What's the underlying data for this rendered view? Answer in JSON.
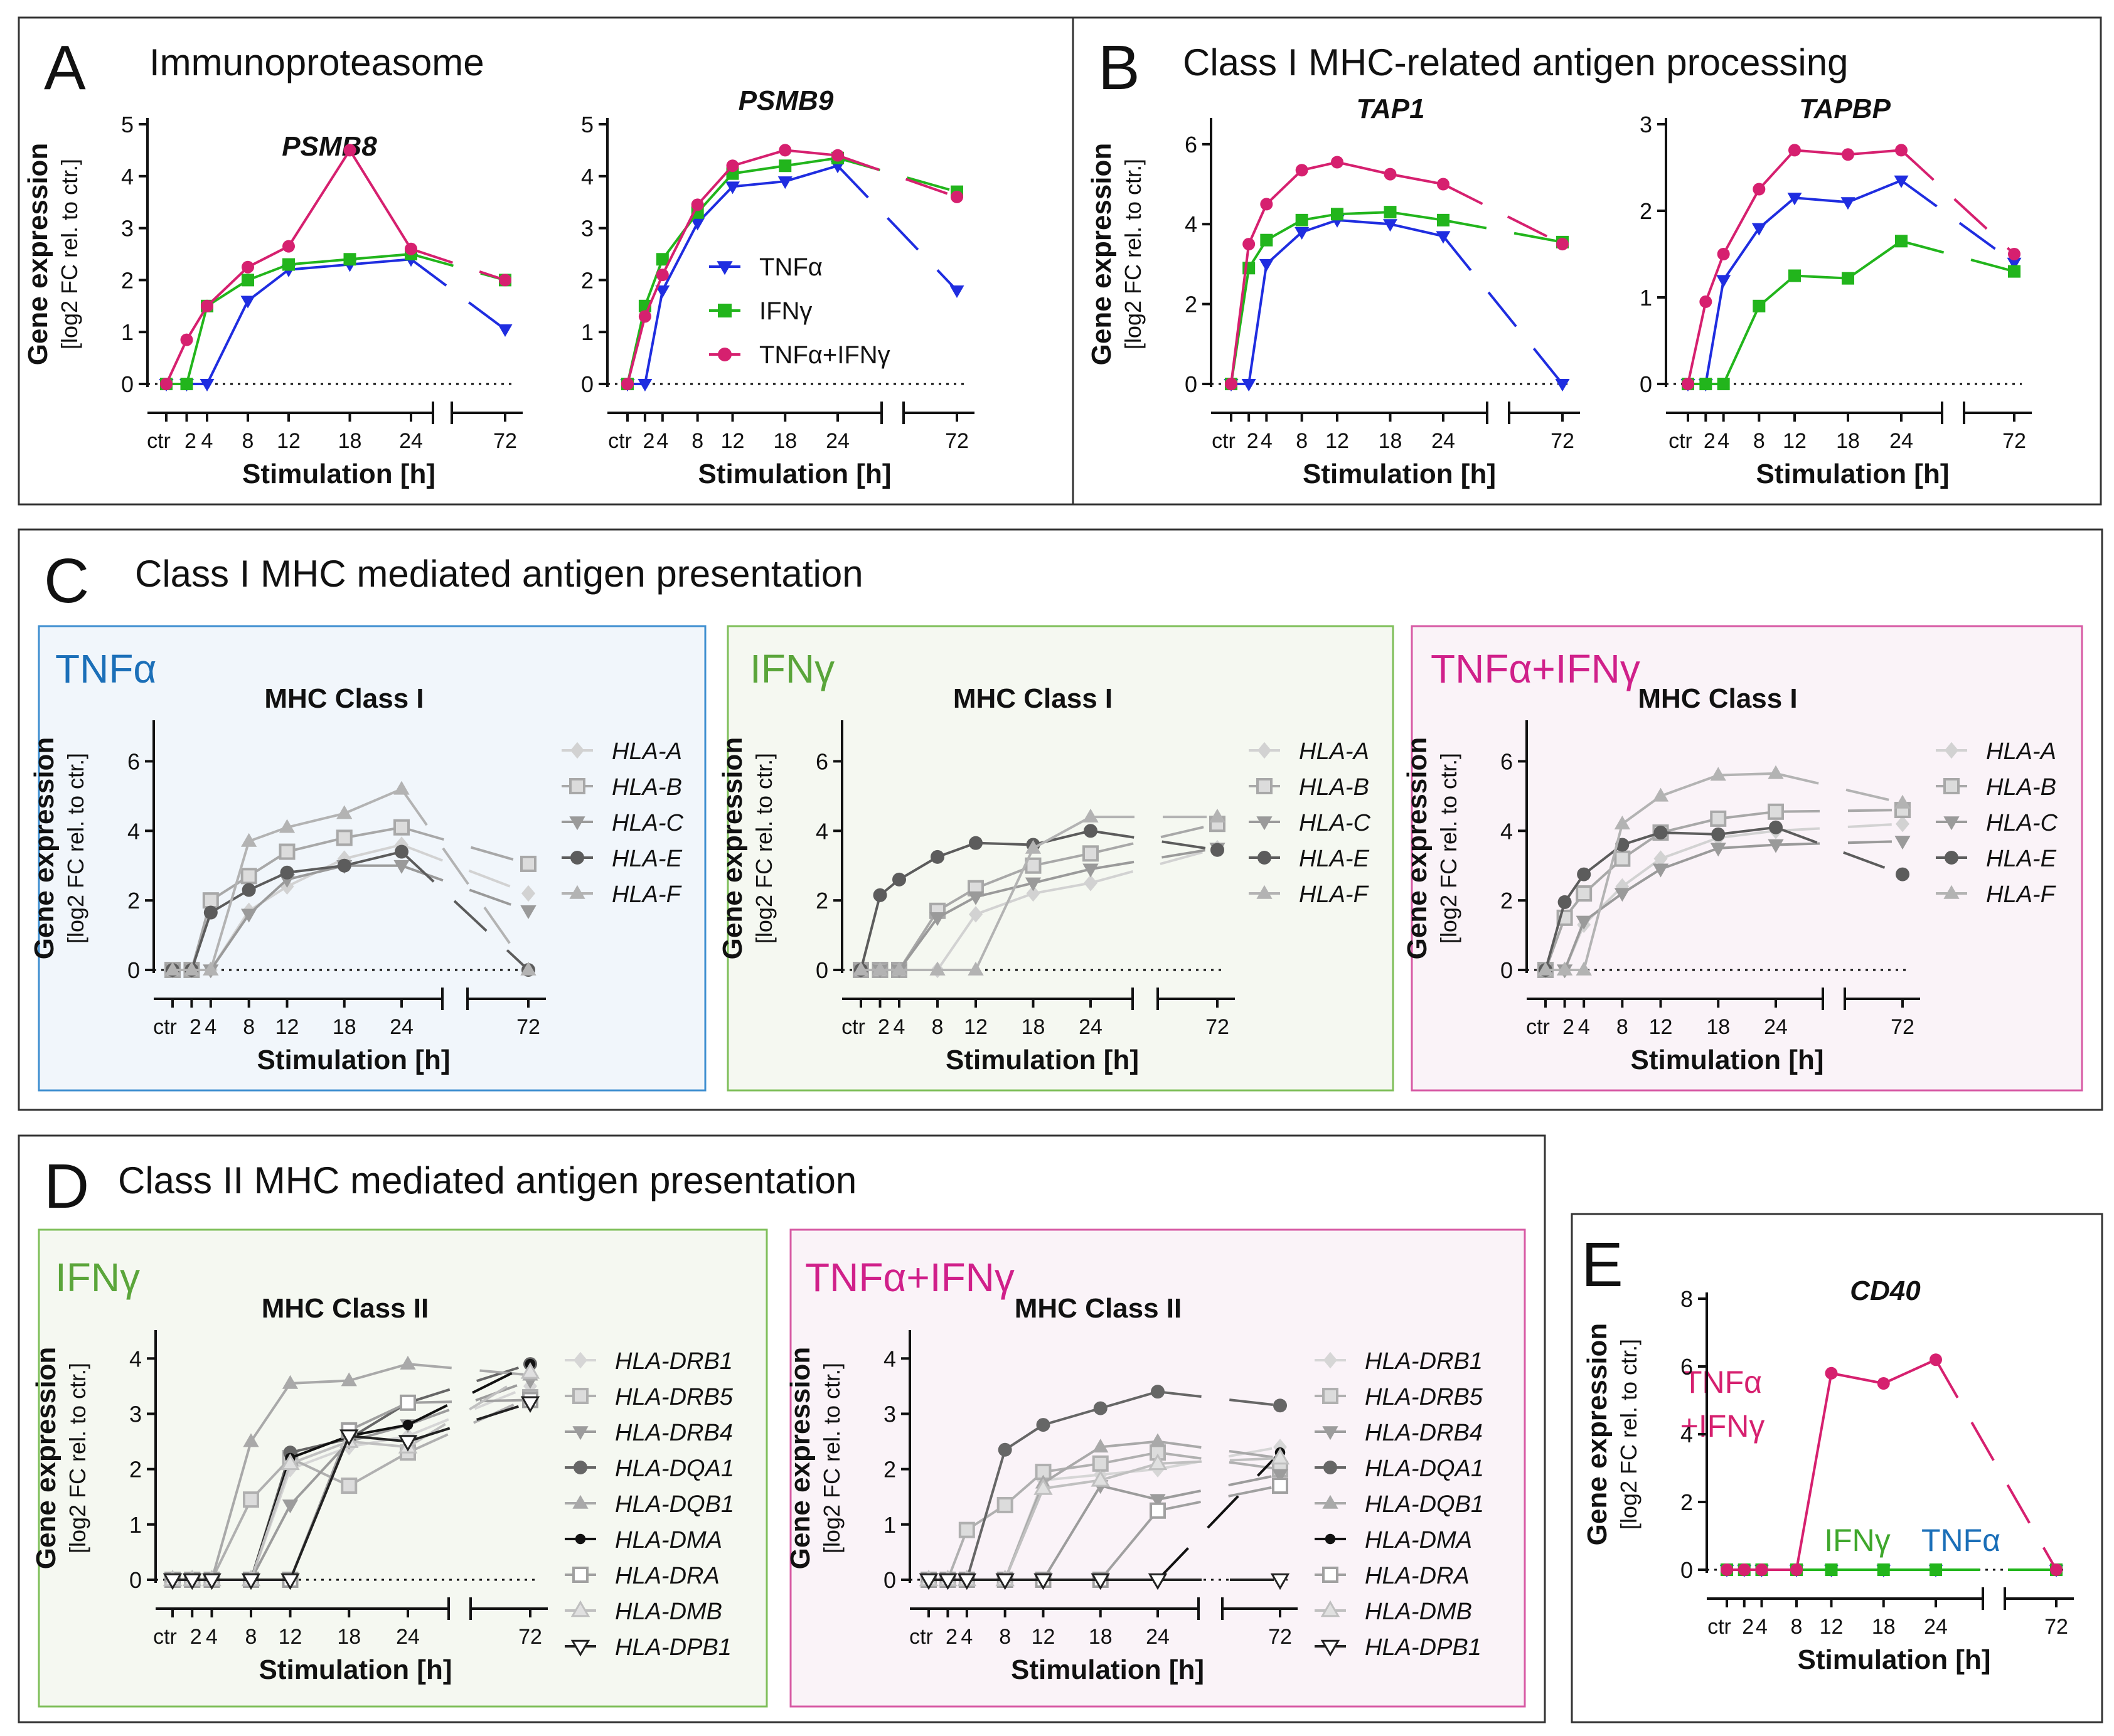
{
  "figure": {
    "panels": [
      {
        "letter": "A",
        "title": "Immunoproteasome"
      },
      {
        "letter": "B",
        "title": "Class I MHC-related antigen processing"
      },
      {
        "letter": "C",
        "title": "Class I MHC mediated antigen presentation"
      },
      {
        "letter": "D",
        "title": "Class II MHC mediated antigen presentation"
      },
      {
        "letter": "E",
        "title": ""
      }
    ],
    "subpanels": {
      "c1": {
        "label": "TNFα"
      },
      "c2": {
        "label": "IFNγ"
      },
      "c3": {
        "label": "TNFα+IFNγ"
      },
      "d1": {
        "label": "IFNγ"
      },
      "d2": {
        "label": "TNFα+IFNγ"
      }
    },
    "e_annotations": {
      "combo_line1": "TNFα",
      "combo_line2": "+IFNγ",
      "ifng": "IFNγ",
      "tnfa": "TNFα"
    },
    "ylabel_main": "Gene expression",
    "ylabel_sub": "[log2 FC rel. to ctr.]",
    "xlabel": "Stimulation [h]",
    "x_ticklabels": [
      "ctr",
      "2",
      "4",
      "8",
      "12",
      "18",
      "24",
      "72"
    ],
    "colors": {
      "tnfa": "#1f2de0",
      "ifng": "#22b51c",
      "combo": "#d6206f",
      "frame_c1": "#3f8fd0",
      "frame_c2": "#7fbf5a",
      "frame_c3": "#d75aa4",
      "bg_c1": "#f1f6fb",
      "bg_c2": "#f5f8f1",
      "bg_c3": "#faf3f8"
    }
  },
  "chart_data": [
    {
      "id": "psmb8",
      "type": "line",
      "title": "PSMB8",
      "xlabel": "Stimulation [h]",
      "ylabel": "Gene expression [log2 FC rel. to ctr.]",
      "x": [
        "ctr",
        "2",
        "4",
        "8",
        "12",
        "18",
        "24",
        "72"
      ],
      "ylim": [
        0,
        5
      ],
      "yticks": [
        0,
        1,
        2,
        3,
        4,
        5
      ],
      "legend": [
        "TNFα",
        "IFNγ",
        "TNFα+IFNγ"
      ],
      "series": [
        {
          "name": "TNFα",
          "values": [
            0,
            0,
            0,
            1.6,
            2.2,
            2.3,
            2.4,
            1.05
          ]
        },
        {
          "name": "IFNγ",
          "values": [
            0,
            0,
            1.5,
            2.0,
            2.3,
            2.4,
            2.5,
            2.0
          ]
        },
        {
          "name": "TNFα+IFNγ",
          "values": [
            0,
            0.85,
            1.5,
            2.25,
            2.65,
            4.5,
            2.6,
            2.0
          ]
        }
      ]
    },
    {
      "id": "psmb9",
      "type": "line",
      "title": "PSMB9",
      "xlabel": "Stimulation [h]",
      "ylabel": "",
      "x": [
        "ctr",
        "2",
        "4",
        "8",
        "12",
        "18",
        "24",
        "72"
      ],
      "ylim": [
        0,
        5
      ],
      "yticks": [
        0,
        1,
        2,
        3,
        4,
        5
      ],
      "series": [
        {
          "name": "TNFα",
          "values": [
            0,
            0,
            1.8,
            3.1,
            3.8,
            3.9,
            4.2,
            1.8
          ]
        },
        {
          "name": "IFNγ",
          "values": [
            0,
            1.5,
            2.4,
            3.3,
            4.05,
            4.2,
            4.35,
            3.7
          ]
        },
        {
          "name": "TNFα+IFNγ",
          "values": [
            0,
            1.3,
            2.1,
            3.45,
            4.2,
            4.5,
            4.4,
            3.6
          ]
        }
      ]
    },
    {
      "id": "tap1",
      "type": "line",
      "title": "TAP1",
      "xlabel": "Stimulation [h]",
      "ylabel": "Gene expression [log2 FC rel. to ctr.]",
      "x": [
        "ctr",
        "2",
        "4",
        "8",
        "12",
        "18",
        "24",
        "72"
      ],
      "ylim": [
        0,
        6.5
      ],
      "yticks": [
        0,
        2,
        4,
        6
      ],
      "series": [
        {
          "name": "TNFα",
          "values": [
            0,
            0,
            3.0,
            3.8,
            4.1,
            4.0,
            3.7,
            0
          ]
        },
        {
          "name": "IFNγ",
          "values": [
            0,
            2.9,
            3.6,
            4.1,
            4.25,
            4.3,
            4.1,
            3.55
          ]
        },
        {
          "name": "TNFα+IFNγ",
          "values": [
            0,
            3.5,
            4.5,
            5.35,
            5.55,
            5.25,
            5.0,
            3.5
          ]
        }
      ]
    },
    {
      "id": "tapbp",
      "type": "line",
      "title": "TAPBP",
      "xlabel": "Stimulation [h]",
      "ylabel": "",
      "x": [
        "ctr",
        "2",
        "4",
        "8",
        "12",
        "18",
        "24",
        "72"
      ],
      "ylim": [
        0,
        3
      ],
      "yticks": [
        0,
        1,
        2,
        3
      ],
      "series": [
        {
          "name": "TNFα",
          "values": [
            0,
            0,
            1.2,
            1.8,
            2.15,
            2.1,
            2.35,
            1.4
          ]
        },
        {
          "name": "IFNγ",
          "values": [
            0,
            0,
            0,
            0.9,
            1.25,
            1.22,
            1.65,
            1.3
          ]
        },
        {
          "name": "TNFα+IFNγ",
          "values": [
            0,
            0.95,
            1.5,
            2.25,
            2.7,
            2.65,
            2.7,
            1.5
          ]
        }
      ]
    },
    {
      "id": "c_tnfa",
      "type": "line",
      "title": "MHC Class I",
      "xlabel": "Stimulation [h]",
      "ylabel": "Gene expression [log2 FC rel. to ctr.]",
      "x": [
        "ctr",
        "2",
        "4",
        "8",
        "12",
        "18",
        "24",
        "72"
      ],
      "ylim": [
        0,
        7
      ],
      "yticks": [
        0,
        2,
        4,
        6
      ],
      "series": [
        {
          "name": "HLA-A",
          "values": [
            0,
            0,
            0,
            1.7,
            2.4,
            3.2,
            3.6,
            2.2
          ]
        },
        {
          "name": "HLA-B",
          "values": [
            0,
            0,
            2.0,
            2.7,
            3.4,
            3.8,
            4.1,
            3.05
          ]
        },
        {
          "name": "HLA-C",
          "values": [
            0,
            0,
            0,
            1.6,
            2.6,
            3.0,
            3.0,
            1.7
          ]
        },
        {
          "name": "HLA-E",
          "values": [
            0,
            0,
            1.65,
            2.3,
            2.8,
            3.0,
            3.4,
            0
          ]
        },
        {
          "name": "HLA-F",
          "values": [
            0,
            0,
            0,
            3.7,
            4.1,
            4.5,
            5.2,
            0
          ]
        }
      ]
    },
    {
      "id": "c_ifng",
      "type": "line",
      "title": "MHC Class I",
      "xlabel": "Stimulation [h]",
      "ylabel": "Gene expression [log2 FC rel. to ctr.]",
      "x": [
        "ctr",
        "2",
        "4",
        "8",
        "12",
        "18",
        "24",
        "72"
      ],
      "ylim": [
        0,
        7
      ],
      "yticks": [
        0,
        2,
        4,
        6
      ],
      "series": [
        {
          "name": "HLA-A",
          "values": [
            0,
            0,
            0,
            0,
            1.6,
            2.2,
            2.5,
            3.5
          ]
        },
        {
          "name": "HLA-B",
          "values": [
            0,
            0,
            0,
            1.7,
            2.35,
            3.0,
            3.35,
            4.2
          ]
        },
        {
          "name": "HLA-C",
          "values": [
            0,
            0,
            0,
            1.5,
            2.1,
            2.5,
            2.9,
            3.5
          ]
        },
        {
          "name": "HLA-E",
          "values": [
            0,
            2.15,
            2.6,
            3.25,
            3.65,
            3.6,
            4.0,
            3.45
          ]
        },
        {
          "name": "HLA-F",
          "values": [
            0,
            0,
            0,
            0,
            0,
            3.5,
            4.4,
            4.4
          ]
        }
      ]
    },
    {
      "id": "c_combo",
      "type": "line",
      "title": "MHC Class I",
      "xlabel": "Stimulation [h]",
      "ylabel": "Gene expression [log2 FC rel. to ctr.]",
      "x": [
        "ctr",
        "2",
        "4",
        "8",
        "12",
        "18",
        "24",
        "72"
      ],
      "ylim": [
        0,
        7
      ],
      "yticks": [
        0,
        2,
        4,
        6
      ],
      "series": [
        {
          "name": "HLA-A",
          "values": [
            0,
            0,
            1.3,
            2.4,
            3.2,
            3.8,
            4.0,
            4.2
          ]
        },
        {
          "name": "HLA-B",
          "values": [
            0,
            1.5,
            2.2,
            3.2,
            3.95,
            4.35,
            4.55,
            4.6
          ]
        },
        {
          "name": "HLA-C",
          "values": [
            0,
            0,
            1.4,
            2.2,
            2.9,
            3.5,
            3.6,
            3.7
          ]
        },
        {
          "name": "HLA-E",
          "values": [
            0,
            1.95,
            2.75,
            3.6,
            3.95,
            3.9,
            4.1,
            2.75
          ]
        },
        {
          "name": "HLA-F",
          "values": [
            0,
            0,
            0,
            4.2,
            5.0,
            5.6,
            5.65,
            4.8
          ]
        }
      ]
    },
    {
      "id": "d_ifng",
      "type": "line",
      "title": "MHC Class II",
      "xlabel": "Stimulation [h]",
      "ylabel": "Gene expression [log2 FC rel. to ctr.]",
      "x": [
        "ctr",
        "2",
        "4",
        "8",
        "12",
        "18",
        "24",
        "72"
      ],
      "ylim": [
        0,
        4.4
      ],
      "yticks": [
        0,
        1,
        2,
        3,
        4
      ],
      "series": [
        {
          "name": "HLA-DRB1",
          "values": [
            0,
            0,
            0,
            0,
            2.0,
            2.4,
            2.6,
            3.5
          ]
        },
        {
          "name": "HLA-DRB5",
          "values": [
            0,
            0,
            0,
            1.45,
            2.2,
            1.7,
            2.3,
            3.3
          ]
        },
        {
          "name": "HLA-DRB4",
          "values": [
            0,
            0,
            0,
            0,
            1.35,
            2.5,
            2.8,
            3.6
          ]
        },
        {
          "name": "HLA-DQA1",
          "values": [
            0,
            0,
            0,
            0,
            2.3,
            2.55,
            3.2,
            3.9
          ]
        },
        {
          "name": "HLA-DQB1",
          "values": [
            0,
            0,
            0,
            2.5,
            3.55,
            3.6,
            3.9,
            3.7
          ]
        },
        {
          "name": "HLA-DMA",
          "values": [
            0,
            0,
            0,
            0,
            2.2,
            2.6,
            2.8,
            3.9
          ]
        },
        {
          "name": "HLA-DRA",
          "values": [
            0,
            0,
            0,
            0,
            0,
            2.7,
            3.2,
            3.25
          ]
        },
        {
          "name": "HLA-DMB",
          "values": [
            0,
            0,
            0,
            0,
            2.1,
            2.5,
            2.4,
            3.75
          ]
        },
        {
          "name": "HLA-DPB1",
          "values": [
            0,
            0,
            0,
            0,
            0,
            2.6,
            2.5,
            3.2
          ]
        }
      ]
    },
    {
      "id": "d_combo",
      "type": "line",
      "title": "MHC Class II",
      "xlabel": "Stimulation [h]",
      "ylabel": "Gene expression [log2 FC rel. to ctr.]",
      "x": [
        "ctr",
        "2",
        "4",
        "8",
        "12",
        "18",
        "24",
        "72"
      ],
      "ylim": [
        0,
        4.4
      ],
      "yticks": [
        0,
        1,
        2,
        3,
        4
      ],
      "series": [
        {
          "name": "HLA-DRB1",
          "values": [
            0,
            0,
            0,
            0,
            1.8,
            1.9,
            2.0,
            2.4
          ]
        },
        {
          "name": "HLA-DRB5",
          "values": [
            0,
            0,
            0.9,
            1.35,
            1.95,
            2.1,
            2.3,
            2.0
          ]
        },
        {
          "name": "HLA-DRB4",
          "values": [
            0,
            0,
            0,
            0,
            0,
            1.7,
            1.45,
            1.9
          ]
        },
        {
          "name": "HLA-DQA1",
          "values": [
            0,
            0,
            0,
            2.35,
            2.8,
            3.1,
            3.4,
            3.15
          ]
        },
        {
          "name": "HLA-DQB1",
          "values": [
            0,
            0,
            0,
            0,
            1.75,
            2.4,
            2.5,
            2.2
          ]
        },
        {
          "name": "HLA-DMA",
          "values": [
            0,
            0,
            0,
            0,
            0,
            0,
            0,
            2.3
          ]
        },
        {
          "name": "HLA-DRA",
          "values": [
            0,
            0,
            0,
            0,
            0,
            0,
            1.25,
            1.7
          ]
        },
        {
          "name": "HLA-DMB",
          "values": [
            0,
            0,
            0,
            0,
            1.65,
            1.8,
            2.1,
            2.2
          ]
        },
        {
          "name": "HLA-DPB1",
          "values": [
            0,
            0,
            0,
            0,
            0,
            0,
            0,
            0
          ]
        }
      ]
    },
    {
      "id": "cd40",
      "type": "line",
      "title": "CD40",
      "xlabel": "Stimulation [h]",
      "ylabel": "Gene expression [log2 FC rel. to ctr.]",
      "x": [
        "ctr",
        "2",
        "4",
        "8",
        "12",
        "18",
        "24",
        "72"
      ],
      "ylim": [
        0,
        8
      ],
      "yticks": [
        0,
        2,
        4,
        6,
        8
      ],
      "series": [
        {
          "name": "TNFα",
          "values": [
            0,
            0,
            0,
            0,
            0,
            0,
            0,
            0
          ]
        },
        {
          "name": "IFNγ",
          "values": [
            0,
            0,
            0,
            0,
            0,
            0,
            0,
            0
          ]
        },
        {
          "name": "TNFα+IFNγ",
          "values": [
            0,
            0,
            0,
            0,
            5.8,
            5.5,
            6.2,
            0
          ]
        }
      ]
    }
  ]
}
